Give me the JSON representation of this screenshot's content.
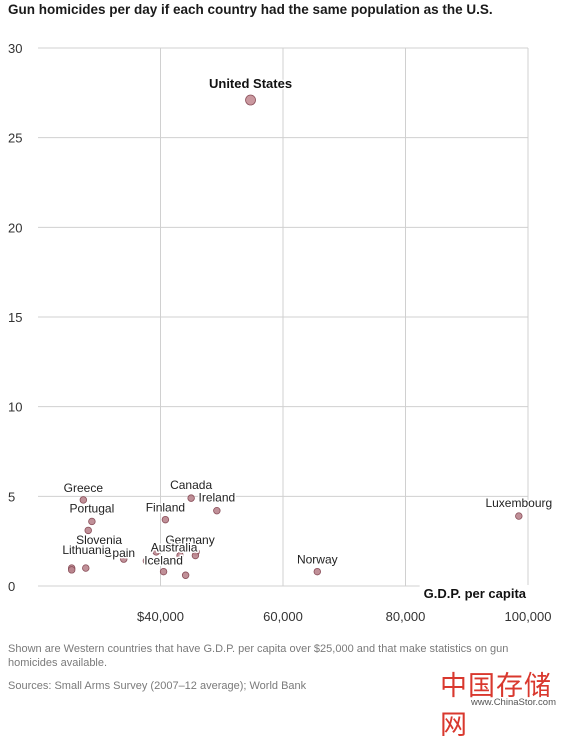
{
  "chart_data": {
    "type": "scatter",
    "title": "Gun homicides per day if each country had the same population as the U.S.",
    "xlabel": "G.D.P. per capita",
    "ylabel": "",
    "xlim": [
      20000,
      100000
    ],
    "ylim": [
      0,
      30
    ],
    "x_ticks": [
      {
        "value": 40000,
        "label": "$40,000"
      },
      {
        "value": 60000,
        "label": "60,000"
      },
      {
        "value": 80000,
        "label": "80,000"
      },
      {
        "value": 100000,
        "label": "100,000"
      }
    ],
    "y_ticks": [
      {
        "value": 0,
        "label": "0"
      },
      {
        "value": 5,
        "label": "5"
      },
      {
        "value": 10,
        "label": "10"
      },
      {
        "value": 15,
        "label": "15"
      },
      {
        "value": 20,
        "label": "20"
      },
      {
        "value": 25,
        "label": "25"
      },
      {
        "value": 30,
        "label": "30"
      }
    ],
    "grid": true,
    "points": [
      {
        "label": "United States",
        "x": 54700,
        "y": 27.1,
        "highlight": true
      },
      {
        "label": "Greece",
        "x": 27400,
        "y": 4.8
      },
      {
        "label": "Portugal",
        "x": 28800,
        "y": 3.6
      },
      {
        "label": "",
        "x": 28200,
        "y": 3.1
      },
      {
        "label": "Slovenia",
        "x": 30300,
        "y": 1.9
      },
      {
        "label": "Spain",
        "x": 34000,
        "y": 1.5
      },
      {
        "label": "Lithuania",
        "x": 25500,
        "y": 1.0
      },
      {
        "label": "",
        "x": 25500,
        "y": 0.9
      },
      {
        "label": "",
        "x": 27800,
        "y": 1.0
      },
      {
        "label": "",
        "x": 37700,
        "y": 1.4
      },
      {
        "label": "",
        "x": 39300,
        "y": 1.9
      },
      {
        "label": "Canada",
        "x": 45000,
        "y": 4.9
      },
      {
        "label": "Finland",
        "x": 40800,
        "y": 3.7
      },
      {
        "label": "Ireland",
        "x": 49200,
        "y": 4.2
      },
      {
        "label": "Germany",
        "x": 45800,
        "y": 1.9
      },
      {
        "label": "Australia",
        "x": 43200,
        "y": 1.7
      },
      {
        "label": "",
        "x": 45700,
        "y": 1.7
      },
      {
        "label": "Iceland",
        "x": 40500,
        "y": 0.8
      },
      {
        "label": "",
        "x": 44100,
        "y": 0.6
      },
      {
        "label": "Norway",
        "x": 65600,
        "y": 0.8
      },
      {
        "label": "Luxembourg",
        "x": 98500,
        "y": 3.9
      }
    ]
  },
  "footer": {
    "note": "Shown are Western countries that have G.D.P. per capita over $25,000 and that make statistics on gun homicides available.",
    "sources": "Sources:  Small Arms Survey (2007–12 average); World Bank"
  },
  "watermark": {
    "chinese": "中国存储网",
    "url": "www.ChinaStor.com"
  },
  "colors": {
    "point_fill": "#b9848d",
    "point_stroke": "#8a4f5a",
    "highlight_fill": "#c48d95",
    "grid": "#d0d0d0",
    "watermark": "#d9382e"
  }
}
